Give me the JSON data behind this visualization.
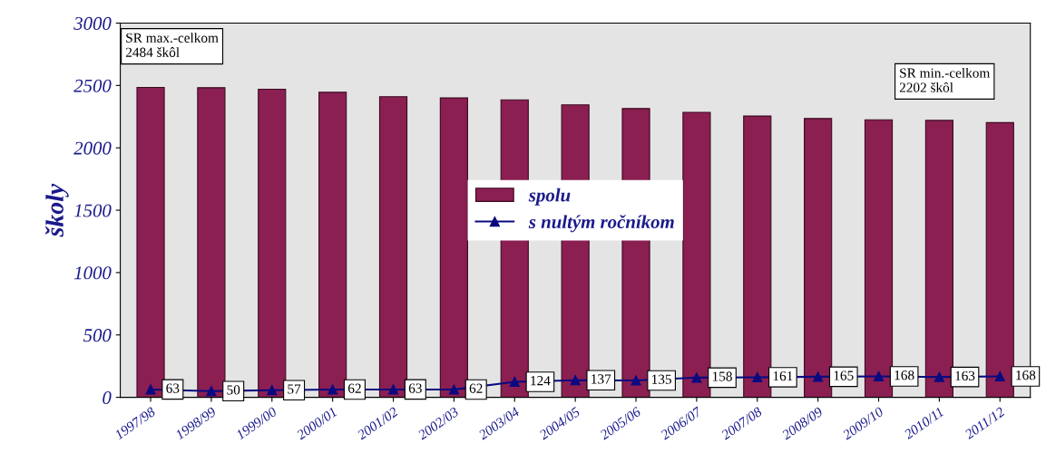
{
  "chart_data": {
    "type": "bar",
    "ylabel": "školy",
    "categories": [
      "1997/98",
      "1998/99",
      "1999/00",
      "2000/01",
      "2001/02",
      "2002/03",
      "2003/04",
      "2004/05",
      "2005/06",
      "2006/07",
      "2007/08",
      "2008/09",
      "2009/10",
      "2010/11",
      "2011/12"
    ],
    "series": [
      {
        "name": "spolu",
        "color": "#8b1f52",
        "values": [
          2484,
          2482,
          2470,
          2445,
          2410,
          2400,
          2385,
          2345,
          2315,
          2285,
          2255,
          2235,
          2225,
          2220,
          2202
        ]
      },
      {
        "name": "s nultým ročníkom",
        "type": "line",
        "color": "#0a0a80",
        "marker": "triangle",
        "data_labels": true,
        "values": [
          63,
          50,
          57,
          62,
          63,
          62,
          124,
          137,
          135,
          158,
          161,
          165,
          168,
          163,
          168
        ]
      }
    ],
    "ylim": [
      0,
      3000
    ],
    "yticks": [
      0,
      500,
      1000,
      1500,
      2000,
      2500,
      3000
    ],
    "grid": false,
    "legend": "center",
    "annotations": [
      {
        "text": "SR max.-celkom\n2484 škôl",
        "x": "1997/98",
        "y": 2484
      },
      {
        "text": "SR min.-celkom\n2202 škôl",
        "x": "2011/12",
        "y": 2202
      }
    ]
  }
}
